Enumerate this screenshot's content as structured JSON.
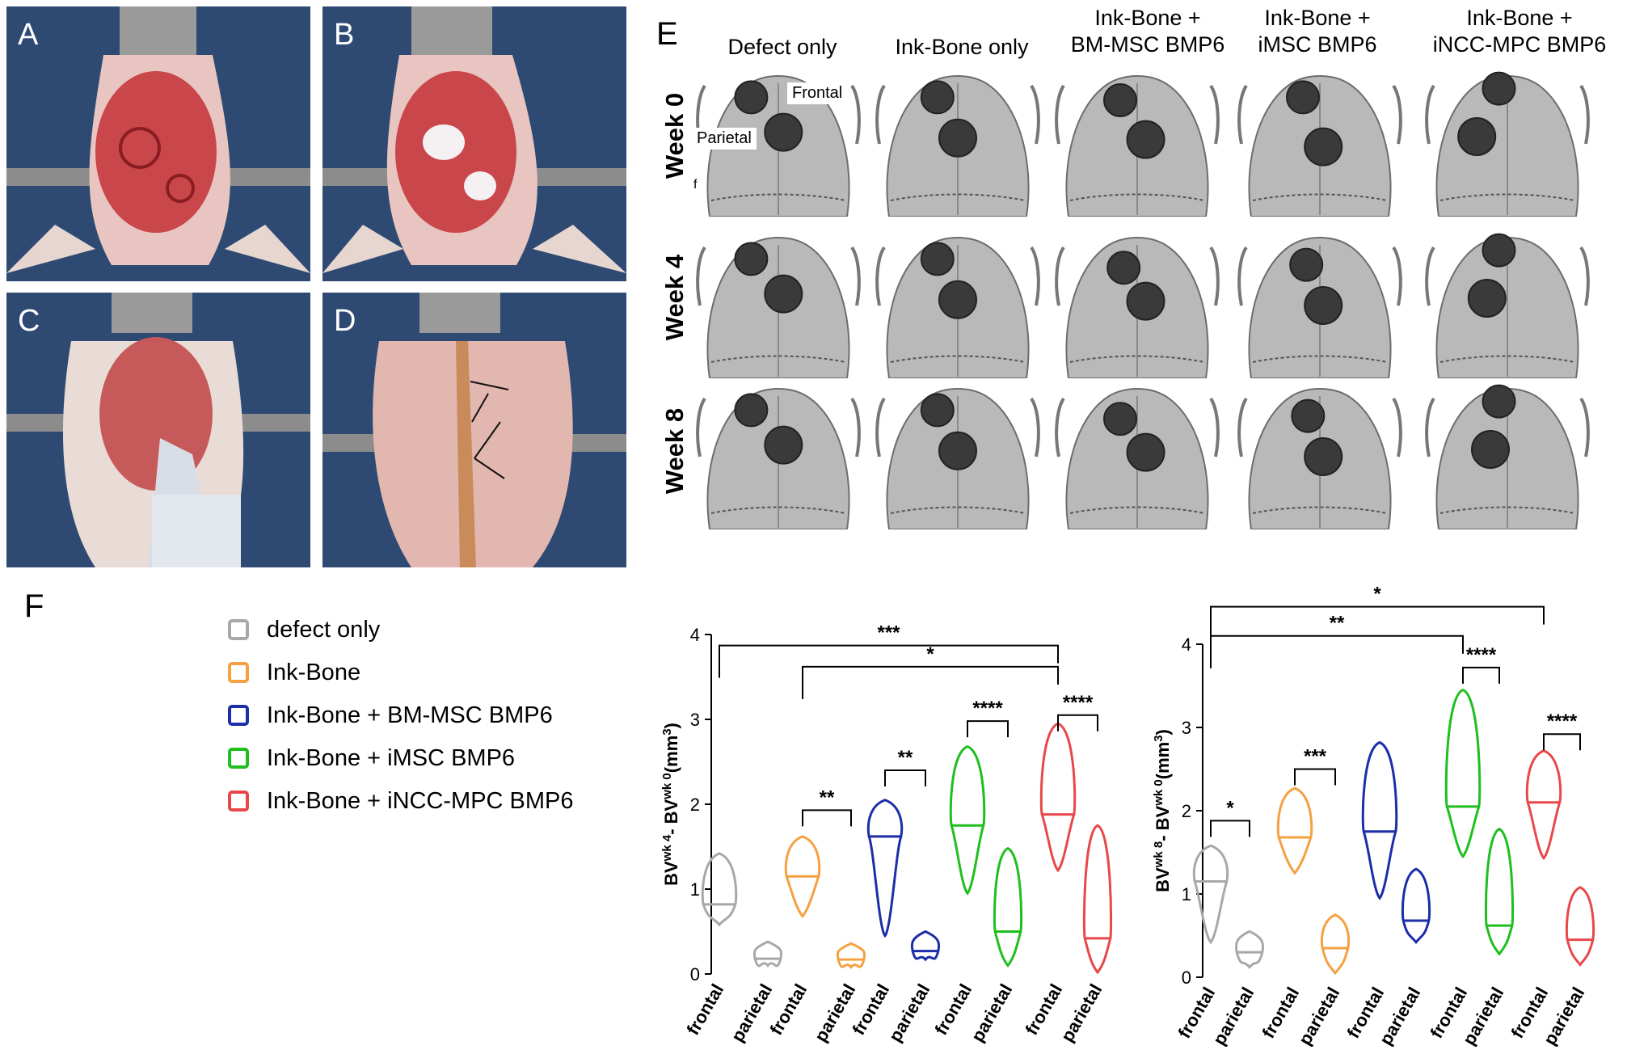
{
  "panels": {
    "A": "A",
    "B": "B",
    "C": "C",
    "D": "D",
    "E": "E",
    "F": "F"
  },
  "scan_grid": {
    "columns": [
      "Defect only",
      "Ink-Bone only",
      "Ink-Bone +\nBM-MSC BMP6",
      "Ink-Bone +\niMSC BMP6",
      "Ink-Bone +\niNCC-MPC BMP6"
    ],
    "rows": [
      "Week 0",
      "Week 4",
      "Week 8"
    ],
    "region_labels": {
      "frontal": "Frontal",
      "parietal": "Parietal"
    },
    "scale_mark": "f"
  },
  "legend": [
    {
      "label": "defect only",
      "color": "#a8a8a8"
    },
    {
      "label": "Ink-Bone",
      "color": "#f5a142"
    },
    {
      "label": "Ink-Bone + BM-MSC BMP6",
      "color": "#1c2ea8"
    },
    {
      "label": "Ink-Bone + iMSC BMP6",
      "color": "#1fbf1f"
    },
    {
      "label": "Ink-Bone + iNCC-MPC BMP6",
      "color": "#e8484a"
    }
  ],
  "chart_data": [
    {
      "type": "violin",
      "title": "",
      "ylabel_parts": {
        "base": "BV",
        "sup1": "wk 4",
        "mid": "- BV",
        "sup2": "wk 0",
        "unit": "(mm",
        "unit_sup": "3",
        "close": ")"
      },
      "ylim": [
        0,
        4
      ],
      "yticks": [
        0,
        1,
        2,
        3,
        4
      ],
      "categories": [
        "frontal",
        "parietal",
        "frontal",
        "parietal",
        "frontal",
        "parietal",
        "frontal",
        "parietal",
        "frontal",
        "parietal"
      ],
      "series": [
        {
          "name": "defect only",
          "color": "#a8a8a8",
          "frontal": {
            "min": 0.58,
            "max": 1.42,
            "median": 0.82
          },
          "parietal": {
            "min": 0.1,
            "max": 0.38,
            "median": 0.18
          }
        },
        {
          "name": "Ink-Bone",
          "color": "#f5a142",
          "frontal": {
            "min": 0.68,
            "max": 1.62,
            "median": 1.15
          },
          "parietal": {
            "min": 0.08,
            "max": 0.36,
            "median": 0.17
          }
        },
        {
          "name": "Ink-Bone + BM-MSC BMP6",
          "color": "#1c2ea8",
          "frontal": {
            "min": 0.45,
            "max": 2.05,
            "median": 1.62
          },
          "parietal": {
            "min": 0.17,
            "max": 0.5,
            "median": 0.27
          }
        },
        {
          "name": "Ink-Bone + iMSC BMP6",
          "color": "#1fbf1f",
          "frontal": {
            "min": 0.95,
            "max": 2.68,
            "median": 1.75
          },
          "parietal": {
            "min": 0.1,
            "max": 1.48,
            "median": 0.5
          }
        },
        {
          "name": "Ink-Bone + iNCC-MPC BMP6",
          "color": "#e8484a",
          "frontal": {
            "min": 1.22,
            "max": 2.95,
            "median": 1.88
          },
          "parietal": {
            "min": 0.02,
            "max": 1.75,
            "median": 0.42
          }
        }
      ],
      "significance": [
        {
          "from": 0,
          "to": 8,
          "label": "***",
          "level": 3.87
        },
        {
          "from": 2,
          "to": 8,
          "label": "*",
          "level": 3.62
        },
        {
          "from": 2,
          "to": 3,
          "label": "**",
          "level": 1.93
        },
        {
          "from": 4,
          "to": 5,
          "label": "**",
          "level": 2.4
        },
        {
          "from": 6,
          "to": 7,
          "label": "****",
          "level": 2.98
        },
        {
          "from": 8,
          "to": 9,
          "label": "****",
          "level": 3.05
        }
      ]
    },
    {
      "type": "violin",
      "title": "",
      "ylabel_parts": {
        "base": "BV",
        "sup1": "wk 8",
        "mid": "- BV",
        "sup2": "wk 0",
        "unit": "(mm",
        "unit_sup": "3",
        "close": ")"
      },
      "ylim": [
        0,
        4
      ],
      "yticks": [
        0,
        1,
        2,
        3,
        4
      ],
      "categories": [
        "frontal",
        "parietal",
        "frontal",
        "parietal",
        "frontal",
        "parietal",
        "frontal",
        "parietal",
        "frontal",
        "parietal"
      ],
      "series": [
        {
          "name": "defect only",
          "color": "#a8a8a8",
          "frontal": {
            "min": 0.42,
            "max": 1.58,
            "median": 1.15
          },
          "parietal": {
            "min": 0.12,
            "max": 0.55,
            "median": 0.3
          }
        },
        {
          "name": "Ink-Bone",
          "color": "#f5a142",
          "frontal": {
            "min": 1.25,
            "max": 2.27,
            "median": 1.68
          },
          "parietal": {
            "min": 0.05,
            "max": 0.75,
            "median": 0.35
          }
        },
        {
          "name": "Ink-Bone + BM-MSC BMP6",
          "color": "#1c2ea8",
          "frontal": {
            "min": 0.95,
            "max": 2.82,
            "median": 1.75
          },
          "parietal": {
            "min": 0.42,
            "max": 1.3,
            "median": 0.68
          }
        },
        {
          "name": "Ink-Bone + iMSC BMP6",
          "color": "#1fbf1f",
          "frontal": {
            "min": 1.45,
            "max": 3.45,
            "median": 2.05
          },
          "parietal": {
            "min": 0.28,
            "max": 1.78,
            "median": 0.62
          }
        },
        {
          "name": "Ink-Bone + iNCC-MPC BMP6",
          "color": "#e8484a",
          "frontal": {
            "min": 1.43,
            "max": 2.72,
            "median": 2.1
          },
          "parietal": {
            "min": 0.15,
            "max": 1.08,
            "median": 0.45
          }
        }
      ],
      "significance": [
        {
          "from": 0,
          "to": 8,
          "label": "*",
          "level": 4.45
        },
        {
          "from": 0,
          "to": 6,
          "label": "**",
          "level": 4.1
        },
        {
          "from": 0,
          "to": 1,
          "label": "*",
          "level": 1.88
        },
        {
          "from": 2,
          "to": 3,
          "label": "***",
          "level": 2.5
        },
        {
          "from": 6,
          "to": 7,
          "label": "****",
          "level": 3.72
        },
        {
          "from": 8,
          "to": 9,
          "label": "****",
          "level": 2.92
        }
      ]
    }
  ]
}
